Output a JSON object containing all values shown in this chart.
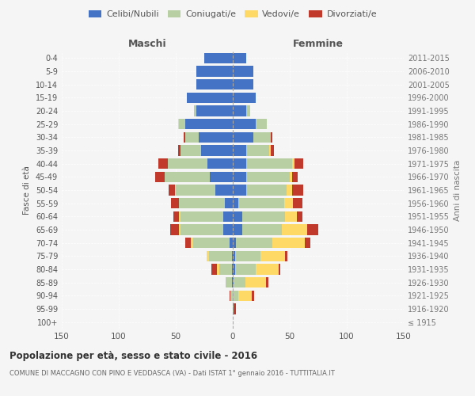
{
  "age_groups": [
    "100+",
    "95-99",
    "90-94",
    "85-89",
    "80-84",
    "75-79",
    "70-74",
    "65-69",
    "60-64",
    "55-59",
    "50-54",
    "45-49",
    "40-44",
    "35-39",
    "30-34",
    "25-29",
    "20-24",
    "15-19",
    "10-14",
    "5-9",
    "0-4"
  ],
  "birth_years": [
    "≤ 1915",
    "1916-1920",
    "1921-1925",
    "1926-1930",
    "1931-1935",
    "1936-1940",
    "1941-1945",
    "1946-1950",
    "1951-1955",
    "1956-1960",
    "1961-1965",
    "1966-1970",
    "1971-1975",
    "1976-1980",
    "1981-1985",
    "1986-1990",
    "1991-1995",
    "1996-2000",
    "2001-2005",
    "2006-2010",
    "2011-2015"
  ],
  "maschi": {
    "celibi": [
      0,
      0,
      0,
      1,
      1,
      1,
      3,
      8,
      8,
      7,
      15,
      20,
      22,
      28,
      30,
      42,
      32,
      40,
      32,
      32,
      25
    ],
    "coniugati": [
      0,
      0,
      2,
      5,
      11,
      20,
      32,
      38,
      38,
      40,
      35,
      40,
      35,
      18,
      12,
      5,
      2,
      0,
      0,
      0,
      0
    ],
    "vedovi": [
      0,
      0,
      0,
      0,
      2,
      2,
      2,
      1,
      1,
      0,
      1,
      0,
      0,
      0,
      0,
      1,
      0,
      0,
      0,
      0,
      0
    ],
    "divorziati": [
      0,
      0,
      1,
      0,
      5,
      0,
      5,
      8,
      5,
      7,
      5,
      8,
      8,
      2,
      1,
      0,
      0,
      0,
      0,
      0,
      0
    ]
  },
  "femmine": {
    "nubili": [
      0,
      0,
      0,
      1,
      2,
      2,
      3,
      8,
      8,
      5,
      12,
      12,
      12,
      12,
      18,
      20,
      12,
      20,
      18,
      18,
      12
    ],
    "coniugate": [
      0,
      1,
      5,
      10,
      18,
      22,
      32,
      35,
      38,
      40,
      35,
      38,
      40,
      20,
      15,
      10,
      3,
      0,
      0,
      0,
      0
    ],
    "vedove": [
      0,
      0,
      12,
      18,
      20,
      22,
      28,
      22,
      10,
      8,
      5,
      2,
      2,
      1,
      0,
      0,
      0,
      0,
      0,
      0,
      0
    ],
    "divorziate": [
      0,
      2,
      2,
      2,
      2,
      2,
      5,
      10,
      5,
      8,
      10,
      5,
      8,
      3,
      2,
      0,
      0,
      0,
      0,
      0,
      0
    ]
  },
  "colors": {
    "celibi": "#4472c4",
    "coniugati": "#b8cfa3",
    "vedovi": "#ffd966",
    "divorziati": "#c0392b"
  },
  "title": "Popolazione per età, sesso e stato civile - 2016",
  "subtitle": "COMUNE DI MACCAGNO CON PINO E VEDDASCA (VA) - Dati ISTAT 1° gennaio 2016 - TUTTITALIA.IT",
  "ylabel_left": "Fasce di età",
  "ylabel_right": "Anni di nascita",
  "xlim": 150,
  "background_color": "#f5f5f5"
}
